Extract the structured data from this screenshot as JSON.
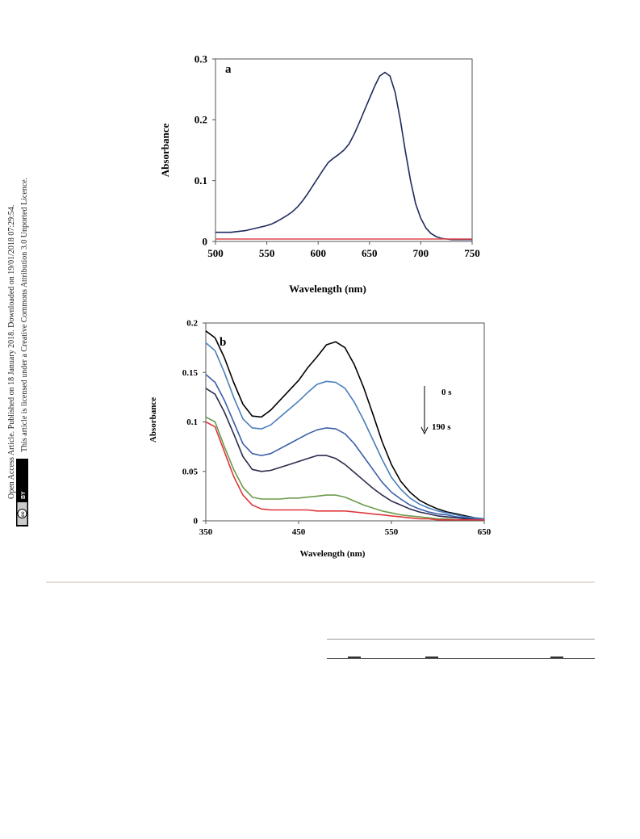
{
  "sidebar": {
    "line1": "Open Access Article. Published on 18 January 2018. Downloaded on 19/01/2018 07:29:54.",
    "line2": "This article is licensed under a Creative Commons Attribution 3.0 Unported Licence.",
    "badge_cc": "cc",
    "badge_by": "BY"
  },
  "chart_data": [
    {
      "type": "line",
      "panel_label": "a",
      "xlabel": "Wavelength (nm)",
      "ylabel": "Absorbance",
      "xlim": [
        500,
        750
      ],
      "ylim": [
        0,
        0.3
      ],
      "xticks": [
        500,
        550,
        600,
        650,
        700,
        750
      ],
      "yticks": [
        0,
        0.1,
        0.2,
        0.3
      ],
      "xtick_labels": [
        "500",
        "550",
        "600",
        "650",
        "700",
        "750"
      ],
      "ytick_labels": [
        "0",
        "0.1",
        "0.2",
        "0.3"
      ],
      "grid": false,
      "series": [
        {
          "color": "#1f2a5c",
          "x": [
            500,
            505,
            510,
            515,
            520,
            525,
            530,
            535,
            540,
            545,
            550,
            555,
            560,
            565,
            570,
            575,
            580,
            585,
            590,
            595,
            600,
            605,
            610,
            615,
            620,
            625,
            630,
            635,
            640,
            645,
            650,
            655,
            660,
            665,
            670,
            675,
            680,
            685,
            690,
            695,
            700,
            705,
            710,
            715,
            720,
            725,
            730,
            740,
            750
          ],
          "y": [
            0.015,
            0.015,
            0.015,
            0.015,
            0.016,
            0.017,
            0.018,
            0.02,
            0.022,
            0.024,
            0.026,
            0.029,
            0.033,
            0.038,
            0.043,
            0.049,
            0.057,
            0.067,
            0.079,
            0.092,
            0.105,
            0.118,
            0.13,
            0.137,
            0.143,
            0.15,
            0.16,
            0.176,
            0.195,
            0.215,
            0.235,
            0.255,
            0.272,
            0.278,
            0.272,
            0.245,
            0.2,
            0.148,
            0.1,
            0.062,
            0.038,
            0.022,
            0.013,
            0.008,
            0.005,
            0.004,
            0.003,
            0.003,
            0.003
          ]
        },
        {
          "color": "#e0474c",
          "x": [
            500,
            750
          ],
          "y": [
            0.004,
            0.004
          ]
        }
      ]
    },
    {
      "type": "line",
      "panel_label": "b",
      "xlabel": "Wavelength (nm)",
      "ylabel": "Absorbance",
      "xlim": [
        350,
        650
      ],
      "ylim": [
        0,
        0.2
      ],
      "xticks": [
        350,
        450,
        550,
        650
      ],
      "yticks": [
        0,
        0.05,
        0.1,
        0.15,
        0.2
      ],
      "xtick_labels": [
        "350",
        "450",
        "550",
        "650"
      ],
      "ytick_labels": [
        "0",
        "0.05",
        "0.1",
        "0.15",
        "0.2"
      ],
      "grid": false,
      "annotations": {
        "start": "0 s",
        "end": "190 s"
      },
      "x": [
        350,
        360,
        370,
        380,
        390,
        400,
        410,
        420,
        430,
        440,
        450,
        460,
        470,
        480,
        490,
        500,
        510,
        520,
        530,
        540,
        550,
        560,
        570,
        580,
        590,
        600,
        610,
        620,
        630,
        640,
        650
      ],
      "series": [
        {
          "color": "#000000",
          "values": [
            0.192,
            0.185,
            0.165,
            0.14,
            0.118,
            0.106,
            0.105,
            0.112,
            0.122,
            0.132,
            0.142,
            0.155,
            0.166,
            0.178,
            0.181,
            0.175,
            0.158,
            0.135,
            0.108,
            0.08,
            0.057,
            0.04,
            0.029,
            0.021,
            0.016,
            0.012,
            0.009,
            0.007,
            0.005,
            0.003,
            0.002
          ]
        },
        {
          "color": "#4a7ebb",
          "values": [
            0.18,
            0.172,
            0.15,
            0.125,
            0.103,
            0.094,
            0.093,
            0.097,
            0.105,
            0.113,
            0.121,
            0.13,
            0.138,
            0.141,
            0.14,
            0.134,
            0.12,
            0.102,
            0.082,
            0.062,
            0.044,
            0.032,
            0.023,
            0.017,
            0.013,
            0.01,
            0.008,
            0.006,
            0.004,
            0.003,
            0.002
          ]
        },
        {
          "color": "#3b5ea8",
          "values": [
            0.148,
            0.14,
            0.122,
            0.1,
            0.078,
            0.068,
            0.066,
            0.068,
            0.073,
            0.078,
            0.083,
            0.088,
            0.092,
            0.094,
            0.093,
            0.088,
            0.078,
            0.065,
            0.052,
            0.039,
            0.029,
            0.022,
            0.016,
            0.012,
            0.009,
            0.007,
            0.006,
            0.004,
            0.003,
            0.002,
            0.001
          ]
        },
        {
          "color": "#2b2a4c",
          "values": [
            0.134,
            0.128,
            0.11,
            0.088,
            0.065,
            0.052,
            0.05,
            0.051,
            0.054,
            0.057,
            0.06,
            0.063,
            0.066,
            0.066,
            0.063,
            0.057,
            0.049,
            0.041,
            0.033,
            0.026,
            0.02,
            0.016,
            0.012,
            0.009,
            0.007,
            0.005,
            0.004,
            0.003,
            0.002,
            0.001,
            0.001
          ]
        },
        {
          "color": "#6b9a4c",
          "values": [
            0.105,
            0.1,
            0.075,
            0.052,
            0.034,
            0.024,
            0.022,
            0.022,
            0.022,
            0.023,
            0.023,
            0.024,
            0.025,
            0.026,
            0.026,
            0.024,
            0.02,
            0.016,
            0.013,
            0.01,
            0.008,
            0.006,
            0.005,
            0.004,
            0.003,
            0.002,
            0.002,
            0.001,
            0.001,
            0.001,
            0.001
          ]
        },
        {
          "color": "#e0363b",
          "values": [
            0.1,
            0.095,
            0.07,
            0.045,
            0.026,
            0.016,
            0.012,
            0.011,
            0.011,
            0.011,
            0.011,
            0.011,
            0.01,
            0.01,
            0.01,
            0.01,
            0.009,
            0.008,
            0.007,
            0.006,
            0.005,
            0.004,
            0.003,
            0.002,
            0.002,
            0.001,
            0.001,
            0.001,
            0.001,
            0.001,
            0.001
          ]
        }
      ]
    }
  ]
}
